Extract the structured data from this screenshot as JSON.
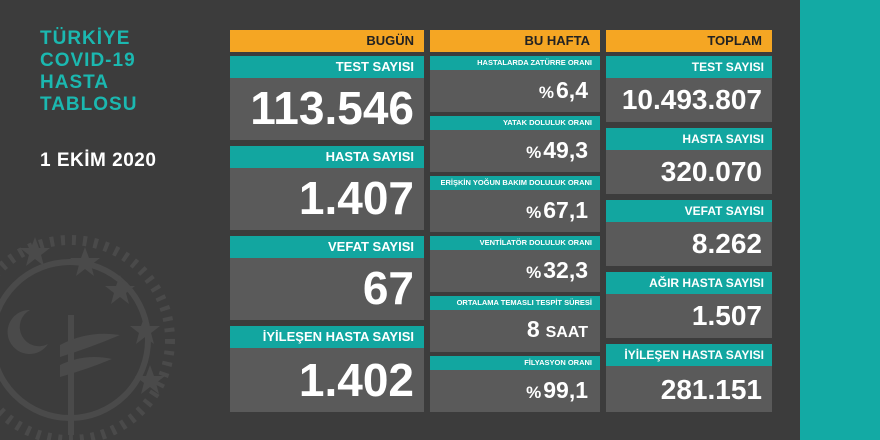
{
  "header": {
    "title_lines": [
      "TÜRKİYE",
      "COVID-19",
      "HASTA",
      "TABLOSU"
    ],
    "date": "1 EKİM 2020"
  },
  "columns": {
    "today": "BUGÜN",
    "week": "BU HAFTA",
    "total": "TOPLAM"
  },
  "today": [
    {
      "label": "TEST SAYISI",
      "value": "113.546"
    },
    {
      "label": "HASTA SAYISI",
      "value": "1.407"
    },
    {
      "label": "VEFAT SAYISI",
      "value": "67"
    },
    {
      "label": "İYİLEŞEN HASTA SAYISI",
      "value": "1.402"
    }
  ],
  "week": [
    {
      "label": "HASTALARDA ZATÜRRE ORANI",
      "prefix": "%",
      "value": "6,4",
      "unit": ""
    },
    {
      "label": "YATAK DOLULUK ORANI",
      "prefix": "%",
      "value": "49,3",
      "unit": ""
    },
    {
      "label": "ERİŞKİN YOĞUN BAKIM DOLULUK ORANI",
      "prefix": "%",
      "value": "67,1",
      "unit": ""
    },
    {
      "label": "VENTİLATÖR DOLULUK ORANI",
      "prefix": "%",
      "value": "32,3",
      "unit": ""
    },
    {
      "label": "ORTALAMA TEMASLI TESPİT SÜRESİ",
      "prefix": "",
      "value": "8",
      "unit": "SAAT"
    },
    {
      "label": "FİLYASYON ORANI",
      "prefix": "%",
      "value": "99,1",
      "unit": ""
    }
  ],
  "total": [
    {
      "label": "TEST SAYISI",
      "value": "10.493.807"
    },
    {
      "label": "HASTA SAYISI",
      "value": "320.070"
    },
    {
      "label": "VEFAT SAYISI",
      "value": "8.262"
    },
    {
      "label": "AĞIR HASTA SAYISI",
      "value": "1.507"
    },
    {
      "label": "İYİLEŞEN HASTA SAYISI",
      "value": "281.151"
    }
  ],
  "colors": {
    "board": "#3c3c3c",
    "card": "#5a5a5a",
    "teal": "#12a6a0",
    "orange": "#f5a623",
    "background": "#14a8a2"
  },
  "emblem": "ministry-of-health-emblem"
}
